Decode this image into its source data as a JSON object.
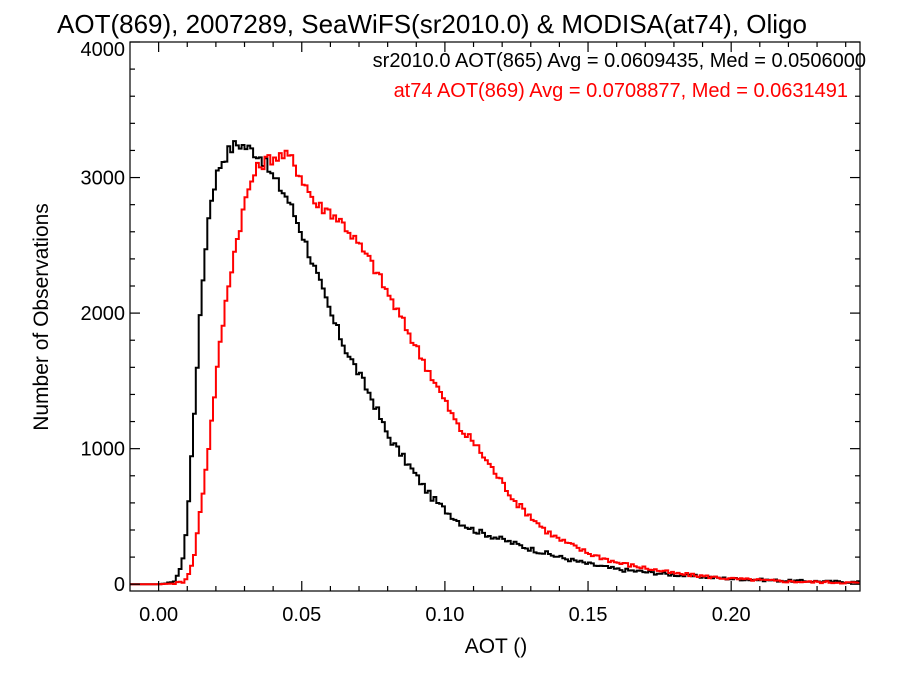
{
  "chart_data": {
    "type": "line",
    "title": "AOT(869), 2007289, SeaWiFS(sr2010.0) & MODISA(at74), Oligo",
    "xlabel": "AOT ()",
    "ylabel": "Number of Observations",
    "xlim": [
      -0.01,
      0.245
    ],
    "ylim": [
      -50,
      4000
    ],
    "xticks": [
      0.0,
      0.05,
      0.1,
      0.15,
      0.2
    ],
    "xtick_labels": [
      "0.00",
      "0.05",
      "0.10",
      "0.15",
      "0.20"
    ],
    "yticks": [
      0,
      1000,
      2000,
      3000,
      4000
    ],
    "ytick_labels": [
      "0",
      "1000",
      "2000",
      "3000",
      "4000"
    ],
    "grid": false,
    "legend_position": "top-right",
    "colors": {
      "sr2010": "#000000",
      "at74": "#ff0000"
    },
    "legend": [
      {
        "text": "sr2010.0 AOT(865) Avg = 0.0609435, Med = 0.0506000",
        "color": "#000000"
      },
      {
        "text": "at74 AOT(869) Avg = 0.0708877, Med = 0.0631491",
        "color": "#ff0000"
      }
    ],
    "series": [
      {
        "key": "sr2010",
        "color": "#000000",
        "x": [
          -0.01,
          0.0,
          0.005,
          0.008,
          0.01,
          0.012,
          0.014,
          0.016,
          0.018,
          0.02,
          0.022,
          0.024,
          0.026,
          0.028,
          0.03,
          0.033,
          0.036,
          0.04,
          0.045,
          0.05,
          0.055,
          0.06,
          0.065,
          0.07,
          0.075,
          0.08,
          0.085,
          0.09,
          0.095,
          0.1,
          0.105,
          0.11,
          0.12,
          0.13,
          0.14,
          0.15,
          0.16,
          0.18,
          0.2,
          0.22,
          0.245
        ],
        "y": [
          0,
          0,
          10,
          120,
          450,
          1100,
          1800,
          2400,
          2800,
          3000,
          3120,
          3180,
          3230,
          3250,
          3230,
          3200,
          3150,
          3000,
          2850,
          2600,
          2300,
          2000,
          1750,
          1550,
          1350,
          1100,
          950,
          800,
          650,
          550,
          460,
          400,
          330,
          260,
          200,
          150,
          110,
          70,
          40,
          25,
          15
        ]
      },
      {
        "key": "at74",
        "color": "#ff0000",
        "x": [
          -0.01,
          0.0,
          0.005,
          0.009,
          0.012,
          0.015,
          0.018,
          0.02,
          0.022,
          0.024,
          0.026,
          0.028,
          0.03,
          0.032,
          0.034,
          0.036,
          0.038,
          0.04,
          0.043,
          0.046,
          0.05,
          0.055,
          0.06,
          0.065,
          0.07,
          0.075,
          0.08,
          0.085,
          0.09,
          0.095,
          0.1,
          0.105,
          0.11,
          0.115,
          0.12,
          0.125,
          0.13,
          0.135,
          0.14,
          0.15,
          0.16,
          0.18,
          0.2,
          0.22,
          0.245
        ],
        "y": [
          0,
          0,
          5,
          20,
          150,
          600,
          1100,
          1500,
          1850,
          2150,
          2400,
          2600,
          2800,
          2950,
          3050,
          3100,
          3130,
          3150,
          3160,
          3150,
          3000,
          2800,
          2750,
          2650,
          2500,
          2350,
          2150,
          1950,
          1750,
          1550,
          1350,
          1150,
          1050,
          900,
          750,
          600,
          500,
          400,
          330,
          230,
          160,
          80,
          40,
          20,
          10
        ]
      }
    ]
  }
}
